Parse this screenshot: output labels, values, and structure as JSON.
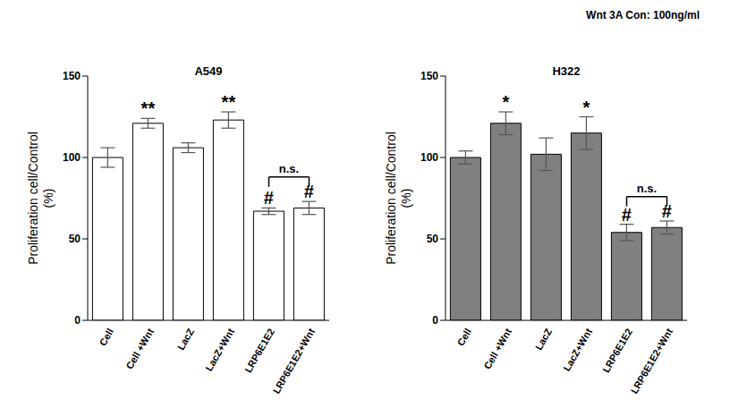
{
  "note": "Wnt 3A Con: 100ng/ml",
  "chart_data": [
    {
      "type": "bar",
      "title": "A549",
      "y_label": "Proliferation cell/Control\n(%)",
      "categories": [
        "Cell",
        "Cell +Wnt",
        "LacZ",
        "LacZ+Wnt",
        "LRP6E1E2",
        "LRP6E1E2+Wnt"
      ],
      "values": [
        100,
        121,
        106,
        123,
        67,
        69
      ],
      "errors": [
        6,
        3,
        3,
        5,
        2,
        4
      ],
      "annotations": [
        null,
        "**",
        null,
        "**",
        "#",
        "#"
      ],
      "brackets": [
        {
          "from": "LRP6E1E2",
          "to": "LRP6E1E2+Wnt",
          "label": "n.s."
        }
      ],
      "color": "#ffffff",
      "ylim": [
        0,
        150
      ],
      "yticks": [
        0,
        50,
        100,
        150
      ],
      "grid": false
    },
    {
      "type": "bar",
      "title": "H322",
      "y_label": "Proliferation cell/Control\n(%)",
      "categories": [
        "Cell",
        "Cell +Wnt",
        "LacZ",
        "LacZ+Wnt",
        "LRP6E1E2",
        "LRP6E1E2+Wnt"
      ],
      "values": [
        100,
        121,
        102,
        115,
        54,
        57
      ],
      "errors": [
        4,
        7,
        10,
        10,
        5,
        4
      ],
      "annotations": [
        null,
        "*",
        null,
        "*",
        "#",
        "#"
      ],
      "brackets": [
        {
          "from": "LRP6E1E2",
          "to": "LRP6E1E2+Wnt",
          "label": "n.s."
        }
      ],
      "color": "#808080",
      "ylim": [
        0,
        150
      ],
      "yticks": [
        0,
        50,
        100,
        150
      ],
      "grid": false
    }
  ]
}
